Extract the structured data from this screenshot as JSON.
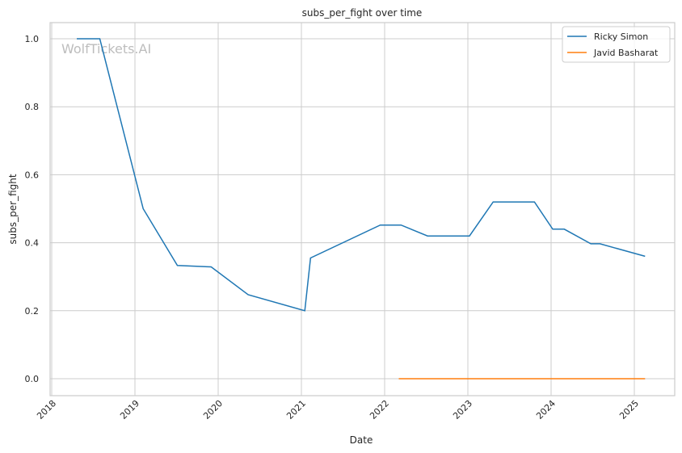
{
  "chart_data": {
    "type": "line",
    "title": "subs_per_fight over time",
    "xlabel": "Date",
    "ylabel": "subs_per_fight",
    "xlim": [
      "2017-12-15",
      "2025-06-01"
    ],
    "ylim": [
      -0.05,
      1.05
    ],
    "x_ticks": [
      "2018",
      "2019",
      "2020",
      "2021",
      "2022",
      "2023",
      "2024",
      "2025"
    ],
    "y_ticks": [
      "0.0",
      "0.2",
      "0.4",
      "0.6",
      "0.8",
      "1.0"
    ],
    "grid": true,
    "legend_position": "top-right",
    "watermark": "WolfTickets.AI",
    "series": [
      {
        "name": "Ricky Simon",
        "color": "#1f77b4",
        "x": [
          "2018-04-21",
          "2018-07-31",
          "2019-02-06",
          "2019-07-06",
          "2019-12-01",
          "2020-05-12",
          "2021-01-16",
          "2021-02-10",
          "2021-12-13",
          "2022-03-14",
          "2022-07-08",
          "2023-01-08",
          "2023-04-22",
          "2023-10-20",
          "2024-01-08",
          "2024-02-28",
          "2024-06-24",
          "2024-08-03",
          "2025-02-17"
        ],
        "y": [
          1.0,
          1.0,
          0.5,
          0.333,
          0.329,
          0.247,
          0.2,
          0.355,
          0.452,
          0.452,
          0.42,
          0.42,
          0.52,
          0.52,
          0.44,
          0.44,
          0.397,
          0.397,
          0.36
        ]
      },
      {
        "name": "Javid Basharat",
        "color": "#ff7f0e",
        "x": [
          "2022-03-04",
          "2025-02-17"
        ],
        "y": [
          0.0,
          0.0
        ]
      }
    ]
  }
}
